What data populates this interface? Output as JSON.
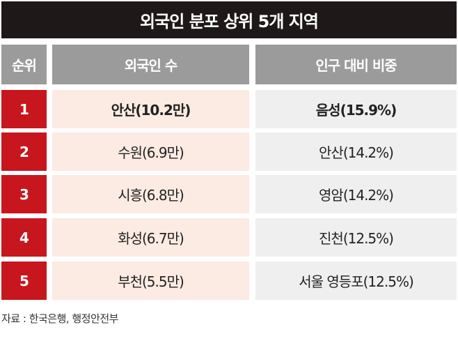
{
  "chart_data": {
    "type": "table",
    "title": "외국인 분포 상위 5개 지역",
    "columns": [
      "순위",
      "외국인 수",
      "인구 대비 비중"
    ],
    "rows": [
      [
        "1",
        "안산(10.2만)",
        "음성(15.9%)"
      ],
      [
        "2",
        "수원(6.9만)",
        "안산(14.2%)"
      ],
      [
        "3",
        "시흥(6.8만)",
        "영암(14.2%)"
      ],
      [
        "4",
        "화성(6.7만)",
        "진천(12.5%)"
      ],
      [
        "5",
        "부천(5.5만)",
        "서울 영등포(12.5%)"
      ]
    ],
    "source": "자료 : 한국은행, 행정안전부"
  },
  "colors": {
    "title_bg": "#1f1819",
    "header_bg": "#9b9b9b",
    "rank_bg": "#c8161e",
    "col1_bg": "#fcebe3",
    "col2_bg": "#efefef"
  }
}
